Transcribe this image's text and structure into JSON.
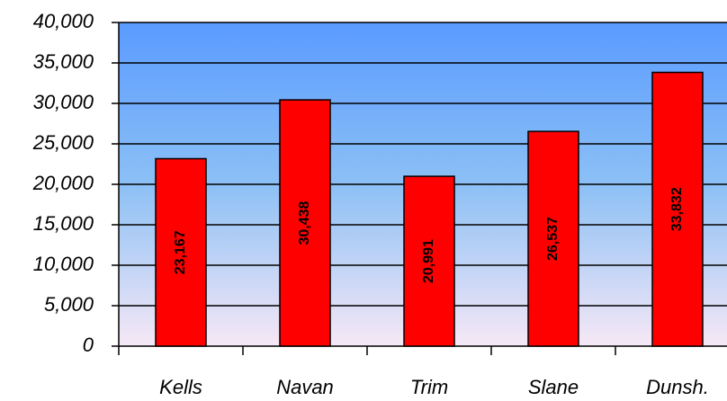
{
  "chart_data": {
    "type": "bar",
    "categories": [
      "Kells",
      "Navan",
      "Trim",
      "Slane",
      "Dunsh."
    ],
    "values": [
      23167,
      30438,
      20991,
      26537,
      33832
    ],
    "value_labels": [
      "23,167",
      "30,438",
      "20,991",
      "26,537",
      "33,832"
    ],
    "color": "#ff0000",
    "ylim": [
      0,
      40000
    ],
    "yticks": [
      0,
      {
        "value": 5000,
        "label": "5,000"
      },
      {
        "value": 10000,
        "label": "10,000"
      },
      {
        "value": 15000,
        "label": "15,000"
      },
      {
        "value": 20000,
        "label": "20,000"
      },
      {
        "value": 25000,
        "label": "25,000"
      },
      {
        "value": 30000,
        "label": "30,000"
      },
      {
        "value": 35000,
        "label": "35,000"
      },
      {
        "value": 40000,
        "label": "40,000"
      }
    ],
    "grid": true
  }
}
